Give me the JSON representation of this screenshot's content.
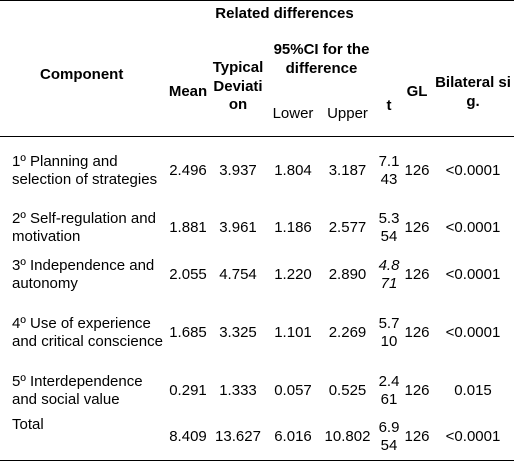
{
  "header": {
    "component": "Component",
    "related_differences": "Related differences",
    "mean": "Mean",
    "typical_deviation": "Typical Deviation",
    "ci": "95%CI for the difference",
    "lower": "Lower",
    "upper": "Upper",
    "t": "t",
    "gl": "GL",
    "bilateral": "Bilateral sig."
  },
  "rows": [
    {
      "component": "1º Planning and selection of strategies",
      "mean": "2.496",
      "sd": "3.937",
      "lower": "1.804",
      "upper": "3.187",
      "t": "7.143",
      "gl": "126",
      "sig": "<0.0001"
    },
    {
      "component": "2º Self-regulation and motivation",
      "mean": "1.881",
      "sd": "3.961",
      "lower": "1.186",
      "upper": "2.577",
      "t": "5.354",
      "gl": "126",
      "sig": "<0.0001"
    },
    {
      "component": "3º Independence and autonomy",
      "mean": "2.055",
      "sd": "4.754",
      "lower": "1.220",
      "upper": "2.890",
      "t": "4.871",
      "gl": "126",
      "sig": "<0.0001"
    },
    {
      "component": "4º Use of experience and critical conscience",
      "mean": "1.685",
      "sd": "3.325",
      "lower": "1.101",
      "upper": "2.269",
      "t": "5.710",
      "gl": "126",
      "sig": "<0.0001"
    },
    {
      "component": "5º Interdependence and social value",
      "mean": "0.291",
      "sd": "1.333",
      "lower": "0.057",
      "upper": "0.525",
      "t": "2.461",
      "gl": "126",
      "sig": "0.015"
    },
    {
      "component": "Total",
      "mean": "8.409",
      "sd": "13.627",
      "lower": "6.016",
      "upper": "10.802",
      "t": "6.954",
      "gl": "126",
      "sig": "<0.0001"
    }
  ]
}
